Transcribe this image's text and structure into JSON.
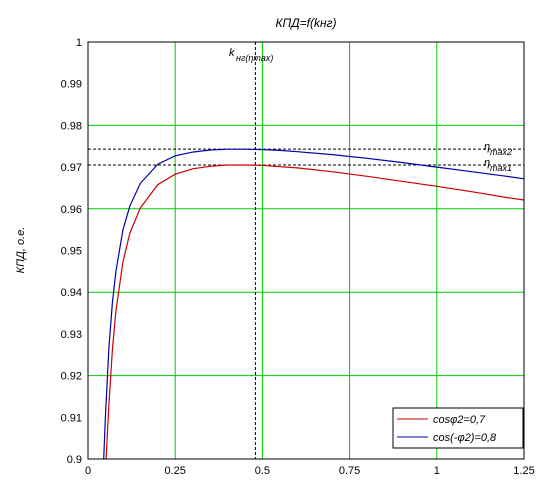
{
  "chart_data": {
    "type": "line",
    "title": "КПД=f(kнг)",
    "ylabel": "КПД, о.е.",
    "xlabel": "",
    "xlim": [
      0,
      1.25
    ],
    "ylim": [
      0.9,
      1
    ],
    "x_ticks": [
      "0",
      "0.25",
      "0.5",
      "0.75",
      "1",
      "1.25"
    ],
    "y_ticks": [
      "0.9",
      "0.91",
      "0.92",
      "0.93",
      "0.94",
      "0.95",
      "0.96",
      "0.97",
      "0.98",
      "0.99",
      "1"
    ],
    "grid": true,
    "legend_position": "bottom-right",
    "series": [
      {
        "name": "cosφ2=0,7",
        "color": "#cc0000",
        "x": [
          0.052,
          0.06,
          0.07,
          0.08,
          0.1,
          0.12,
          0.15,
          0.2,
          0.25,
          0.3,
          0.35,
          0.4,
          0.45,
          0.5,
          0.55,
          0.6,
          0.7,
          0.8,
          0.9,
          1.0,
          1.1,
          1.2,
          1.25
        ],
        "y": [
          0.9,
          0.9131,
          0.9262,
          0.9355,
          0.9472,
          0.9542,
          0.9602,
          0.9658,
          0.9683,
          0.9696,
          0.9702,
          0.9705,
          0.9705,
          0.9704,
          0.9701,
          0.9698,
          0.9689,
          0.9678,
          0.9666,
          0.9654,
          0.9641,
          0.9627,
          0.9621
        ]
      },
      {
        "name": "cos(-φ2)=0,8",
        "color": "#0000aa",
        "x": [
          0.045,
          0.05,
          0.06,
          0.07,
          0.08,
          0.1,
          0.12,
          0.15,
          0.2,
          0.25,
          0.3,
          0.35,
          0.4,
          0.45,
          0.5,
          0.55,
          0.6,
          0.7,
          0.8,
          0.9,
          1.0,
          1.1,
          1.2,
          1.25
        ],
        "y": [
          0.9,
          0.9101,
          0.9267,
          0.9375,
          0.945,
          0.9549,
          0.9607,
          0.9661,
          0.9707,
          0.9727,
          0.9736,
          0.9741,
          0.9743,
          0.9743,
          0.9742,
          0.974,
          0.9737,
          0.973,
          0.9721,
          0.9711,
          0.97,
          0.9689,
          0.9678,
          0.9672
        ]
      }
    ],
    "markers": {
      "vline_x": 0.48,
      "hline_y_1": 0.9705,
      "hline_y_2": 0.9743
    },
    "annotations": {
      "k_main": "k",
      "k_sub": "нг(ηmax)",
      "eta2_main": "η",
      "eta2_sub": "max2",
      "eta1_main": "η",
      "eta1_sub": "max1"
    }
  }
}
